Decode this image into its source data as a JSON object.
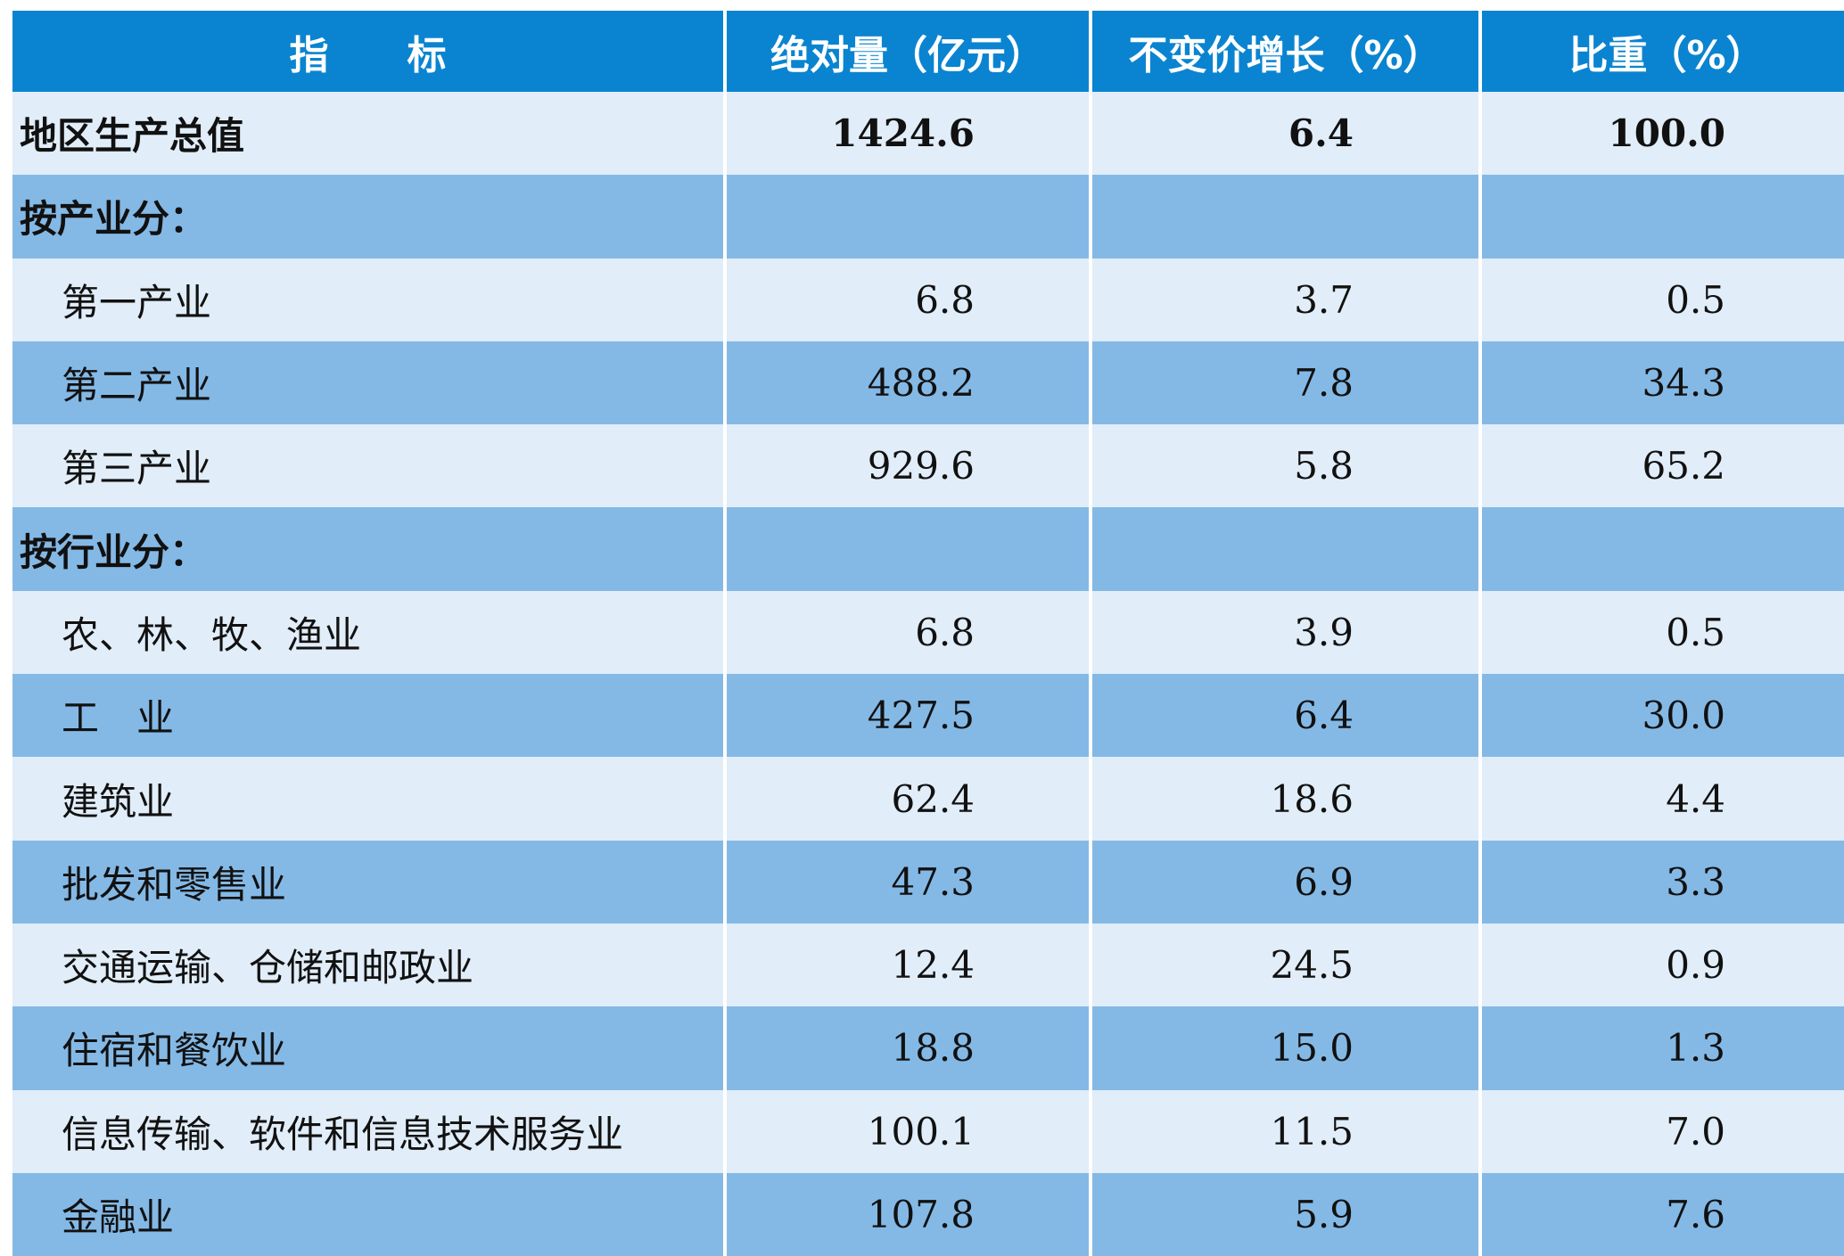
{
  "header": {
    "col_indicator": "指　　标",
    "col_absolute": "绝对量（亿元）",
    "col_growth": "不变价增长（%）",
    "col_share": "比重（%）"
  },
  "rows": [
    {
      "label": "地区生产总值",
      "absolute": "1424.6",
      "growth": "6.4",
      "share": "100.0",
      "bold": true,
      "indent": false,
      "band": "light"
    },
    {
      "label": "按产业分：",
      "absolute": "",
      "growth": "",
      "share": "",
      "bold": true,
      "indent": false,
      "band": "mid"
    },
    {
      "label": "第一产业",
      "absolute": "6.8",
      "growth": "3.7",
      "share": "0.5",
      "bold": false,
      "indent": true,
      "band": "light"
    },
    {
      "label": "第二产业",
      "absolute": "488.2",
      "growth": "7.8",
      "share": "34.3",
      "bold": false,
      "indent": true,
      "band": "mid"
    },
    {
      "label": "第三产业",
      "absolute": "929.6",
      "growth": "5.8",
      "share": "65.2",
      "bold": false,
      "indent": true,
      "band": "light"
    },
    {
      "label": "按行业分：",
      "absolute": "",
      "growth": "",
      "share": "",
      "bold": true,
      "indent": false,
      "band": "mid"
    },
    {
      "label": "农、林、牧、渔业",
      "absolute": "6.8",
      "growth": "3.9",
      "share": "0.5",
      "bold": false,
      "indent": true,
      "band": "light"
    },
    {
      "label": "工　业",
      "absolute": "427.5",
      "growth": "6.4",
      "share": "30.0",
      "bold": false,
      "indent": true,
      "band": "mid"
    },
    {
      "label": "建筑业",
      "absolute": "62.4",
      "growth": "18.6",
      "share": "4.4",
      "bold": false,
      "indent": true,
      "band": "light"
    },
    {
      "label": "批发和零售业",
      "absolute": "47.3",
      "growth": "6.9",
      "share": "3.3",
      "bold": false,
      "indent": true,
      "band": "mid"
    },
    {
      "label": "交通运输、仓储和邮政业",
      "absolute": "12.4",
      "growth": "24.5",
      "share": "0.9",
      "bold": false,
      "indent": true,
      "band": "light"
    },
    {
      "label": "住宿和餐饮业",
      "absolute": "18.8",
      "growth": "15.0",
      "share": "1.3",
      "bold": false,
      "indent": true,
      "band": "mid"
    },
    {
      "label": "信息传输、软件和信息技术服务业",
      "absolute": "100.1",
      "growth": "11.5",
      "share": "7.0",
      "bold": false,
      "indent": true,
      "band": "light"
    },
    {
      "label": "金融业",
      "absolute": "107.8",
      "growth": "5.9",
      "share": "7.6",
      "bold": false,
      "indent": true,
      "band": "mid"
    }
  ],
  "colors": {
    "header_bg": "#0a84d0",
    "band_light": "#e1edf8",
    "band_mid": "#84b9e6"
  }
}
